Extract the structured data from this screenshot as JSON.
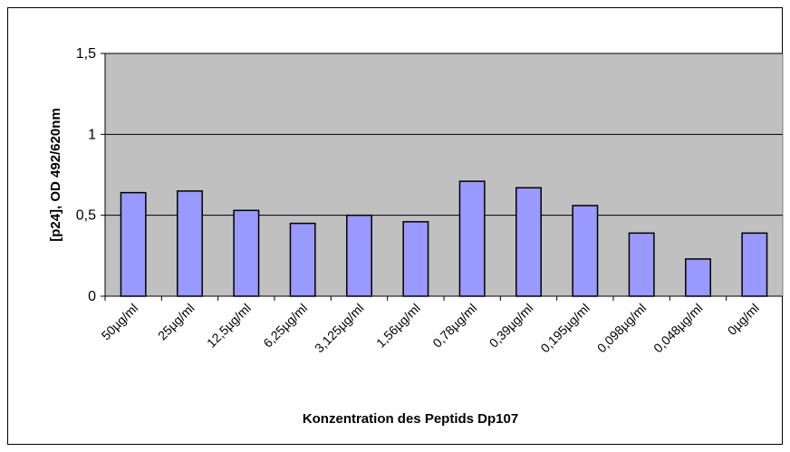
{
  "chart_data": {
    "type": "bar",
    "x_label": "Konzentration des Peptids Dp107",
    "y_label": "[p24], OD 492/620nm",
    "categories": [
      "50µg/ml",
      "25µg/ml",
      "12,5µg/ml",
      "6,25µg/ml",
      "3,125µg/ml",
      "1,56µg/ml",
      "0,78µg/ml",
      "0,39µg/ml",
      "0,195µg/ml",
      "0,098µg/ml",
      "0,048µg/ml",
      "0µg/ml"
    ],
    "values": [
      0.64,
      0.65,
      0.53,
      0.45,
      0.5,
      0.46,
      0.71,
      0.67,
      0.56,
      0.39,
      0.23,
      0.39
    ],
    "color": "#9999ff",
    "ylim": [
      0,
      1.5
    ],
    "yticks": [
      0,
      {
        "value": 0.5,
        "label": "0,5"
      },
      1,
      {
        "value": 1.5,
        "label": "1,5"
      }
    ],
    "grid": true
  }
}
